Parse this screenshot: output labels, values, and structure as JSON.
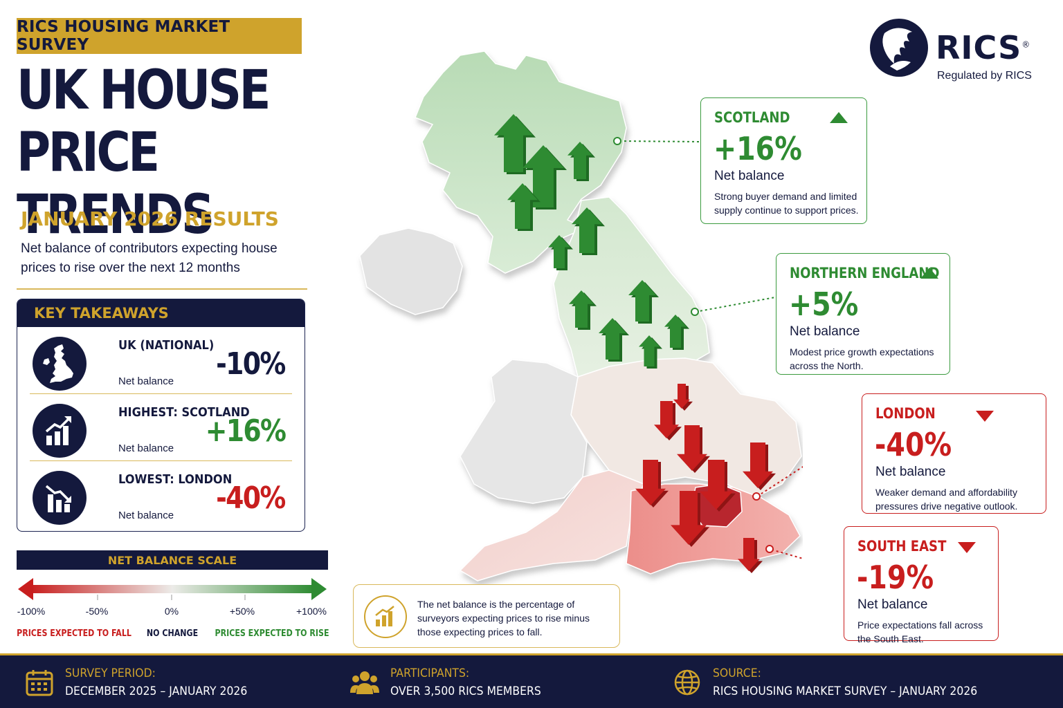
{
  "header": {
    "badge": "RICS HOUSING MARKET SURVEY",
    "title_line1": "UK HOUSE PRICE",
    "title_line2": "TRENDS",
    "subtitle": "JANUARY 2026 RESULTS",
    "description": "Net balance of contributors expecting house prices to rise over the next 12 months"
  },
  "logo": {
    "wordmark": "RICS",
    "registered": "®",
    "tagline": "Regulated by RICS"
  },
  "takeaways": {
    "heading": "KEY TAKEAWAYS",
    "items": [
      {
        "label": "UK (NATIONAL)",
        "sub": "Net balance",
        "value": "-10%",
        "icon": "uk-map-icon"
      },
      {
        "label": "HIGHEST: SCOTLAND",
        "sub": "Net balance",
        "value": "+16%",
        "icon": "chart-up-icon"
      },
      {
        "label": "LOWEST: LONDON",
        "sub": "Net balance",
        "value": "-40%",
        "icon": "chart-down-icon"
      }
    ]
  },
  "scale": {
    "heading": "NET BALANCE SCALE",
    "ticks": [
      "-100%",
      "-50%",
      "0%",
      "+50%",
      "+100%"
    ],
    "captions": {
      "fall": "PRICES EXPECTED TO FALL",
      "none": "NO CHANGE",
      "rise": "PRICES EXPECTED TO RISE"
    }
  },
  "regions": [
    {
      "name": "SCOTLAND",
      "value": "+16%",
      "direction": "up",
      "net_label": "Net balance",
      "text": "Strong buyer demand and limited supply continue to support prices."
    },
    {
      "name": "NORTHERN ENGLAND",
      "value": "+5%",
      "direction": "up",
      "net_label": "Net balance",
      "text": "Modest price growth expectations across the North."
    },
    {
      "name": "LONDON",
      "value": "-40%",
      "direction": "down",
      "net_label": "Net balance",
      "text": "Weaker demand and affordability pressures drive negative outlook."
    },
    {
      "name": "SOUTH EAST",
      "value": "-19%",
      "direction": "down",
      "net_label": "Net balance",
      "text": "Price expectations fall across the South East."
    }
  ],
  "info_note": "The net balance is the percentage of surveyors expecting prices to rise minus those expecting prices to fall.",
  "footer": {
    "survey_label": "SURVEY PERIOD:",
    "survey_value": "DECEMBER 2025 – JANUARY 2026",
    "participants_label": "PARTICIPANTS:",
    "participants_value": "OVER 3,500 RICS MEMBERS",
    "source_label": "SOURCE:",
    "source_value": "RICS HOUSING MARKET SURVEY – JANUARY 2026"
  },
  "colors": {
    "navy": "#14193d",
    "gold": "#cfa32c",
    "rise": "#2e8b32",
    "fall": "#c81e1e"
  }
}
